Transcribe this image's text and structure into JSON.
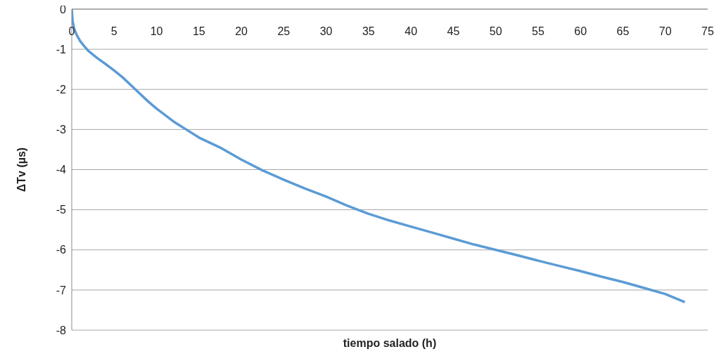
{
  "chart_data": {
    "type": "line",
    "xlabel": "tiempo salado (h)",
    "ylabel": "ΔTv (µs)",
    "x": [
      0,
      0.1,
      0.3,
      0.6,
      1,
      1.5,
      2,
      3,
      4,
      5,
      6,
      7.5,
      9,
      10,
      12,
      13.5,
      15,
      17.5,
      20,
      22.5,
      25,
      27.5,
      30,
      32.5,
      35,
      37.5,
      40,
      42.5,
      45,
      47.5,
      50,
      52.5,
      55,
      57.5,
      60,
      62.5,
      65,
      67.5,
      70,
      72.3
    ],
    "series": [
      {
        "color": "#5b9bd5",
        "values": [
          0,
          -0.3,
          -0.5,
          -0.65,
          -0.8,
          -0.93,
          -1.05,
          -1.22,
          -1.37,
          -1.53,
          -1.7,
          -2.0,
          -2.3,
          -2.48,
          -2.8,
          -3.0,
          -3.2,
          -3.45,
          -3.75,
          -4.02,
          -4.25,
          -4.47,
          -4.67,
          -4.9,
          -5.1,
          -5.27,
          -5.42,
          -5.57,
          -5.72,
          -5.87,
          -6.0,
          -6.13,
          -6.27,
          -6.4,
          -6.53,
          -6.67,
          -6.8,
          -6.95,
          -7.1,
          -7.3
        ]
      }
    ],
    "xlim": [
      0,
      75
    ],
    "xticks": [
      0,
      5,
      10,
      15,
      20,
      25,
      30,
      35,
      40,
      45,
      50,
      55,
      60,
      65,
      70,
      75
    ],
    "ylim": [
      -8,
      0
    ],
    "yticks": [
      -8,
      -7,
      -6,
      -5,
      -4,
      -3,
      -2,
      -1,
      0
    ],
    "grid": "y",
    "legend": false,
    "marker": "none",
    "line_style": "solid"
  }
}
